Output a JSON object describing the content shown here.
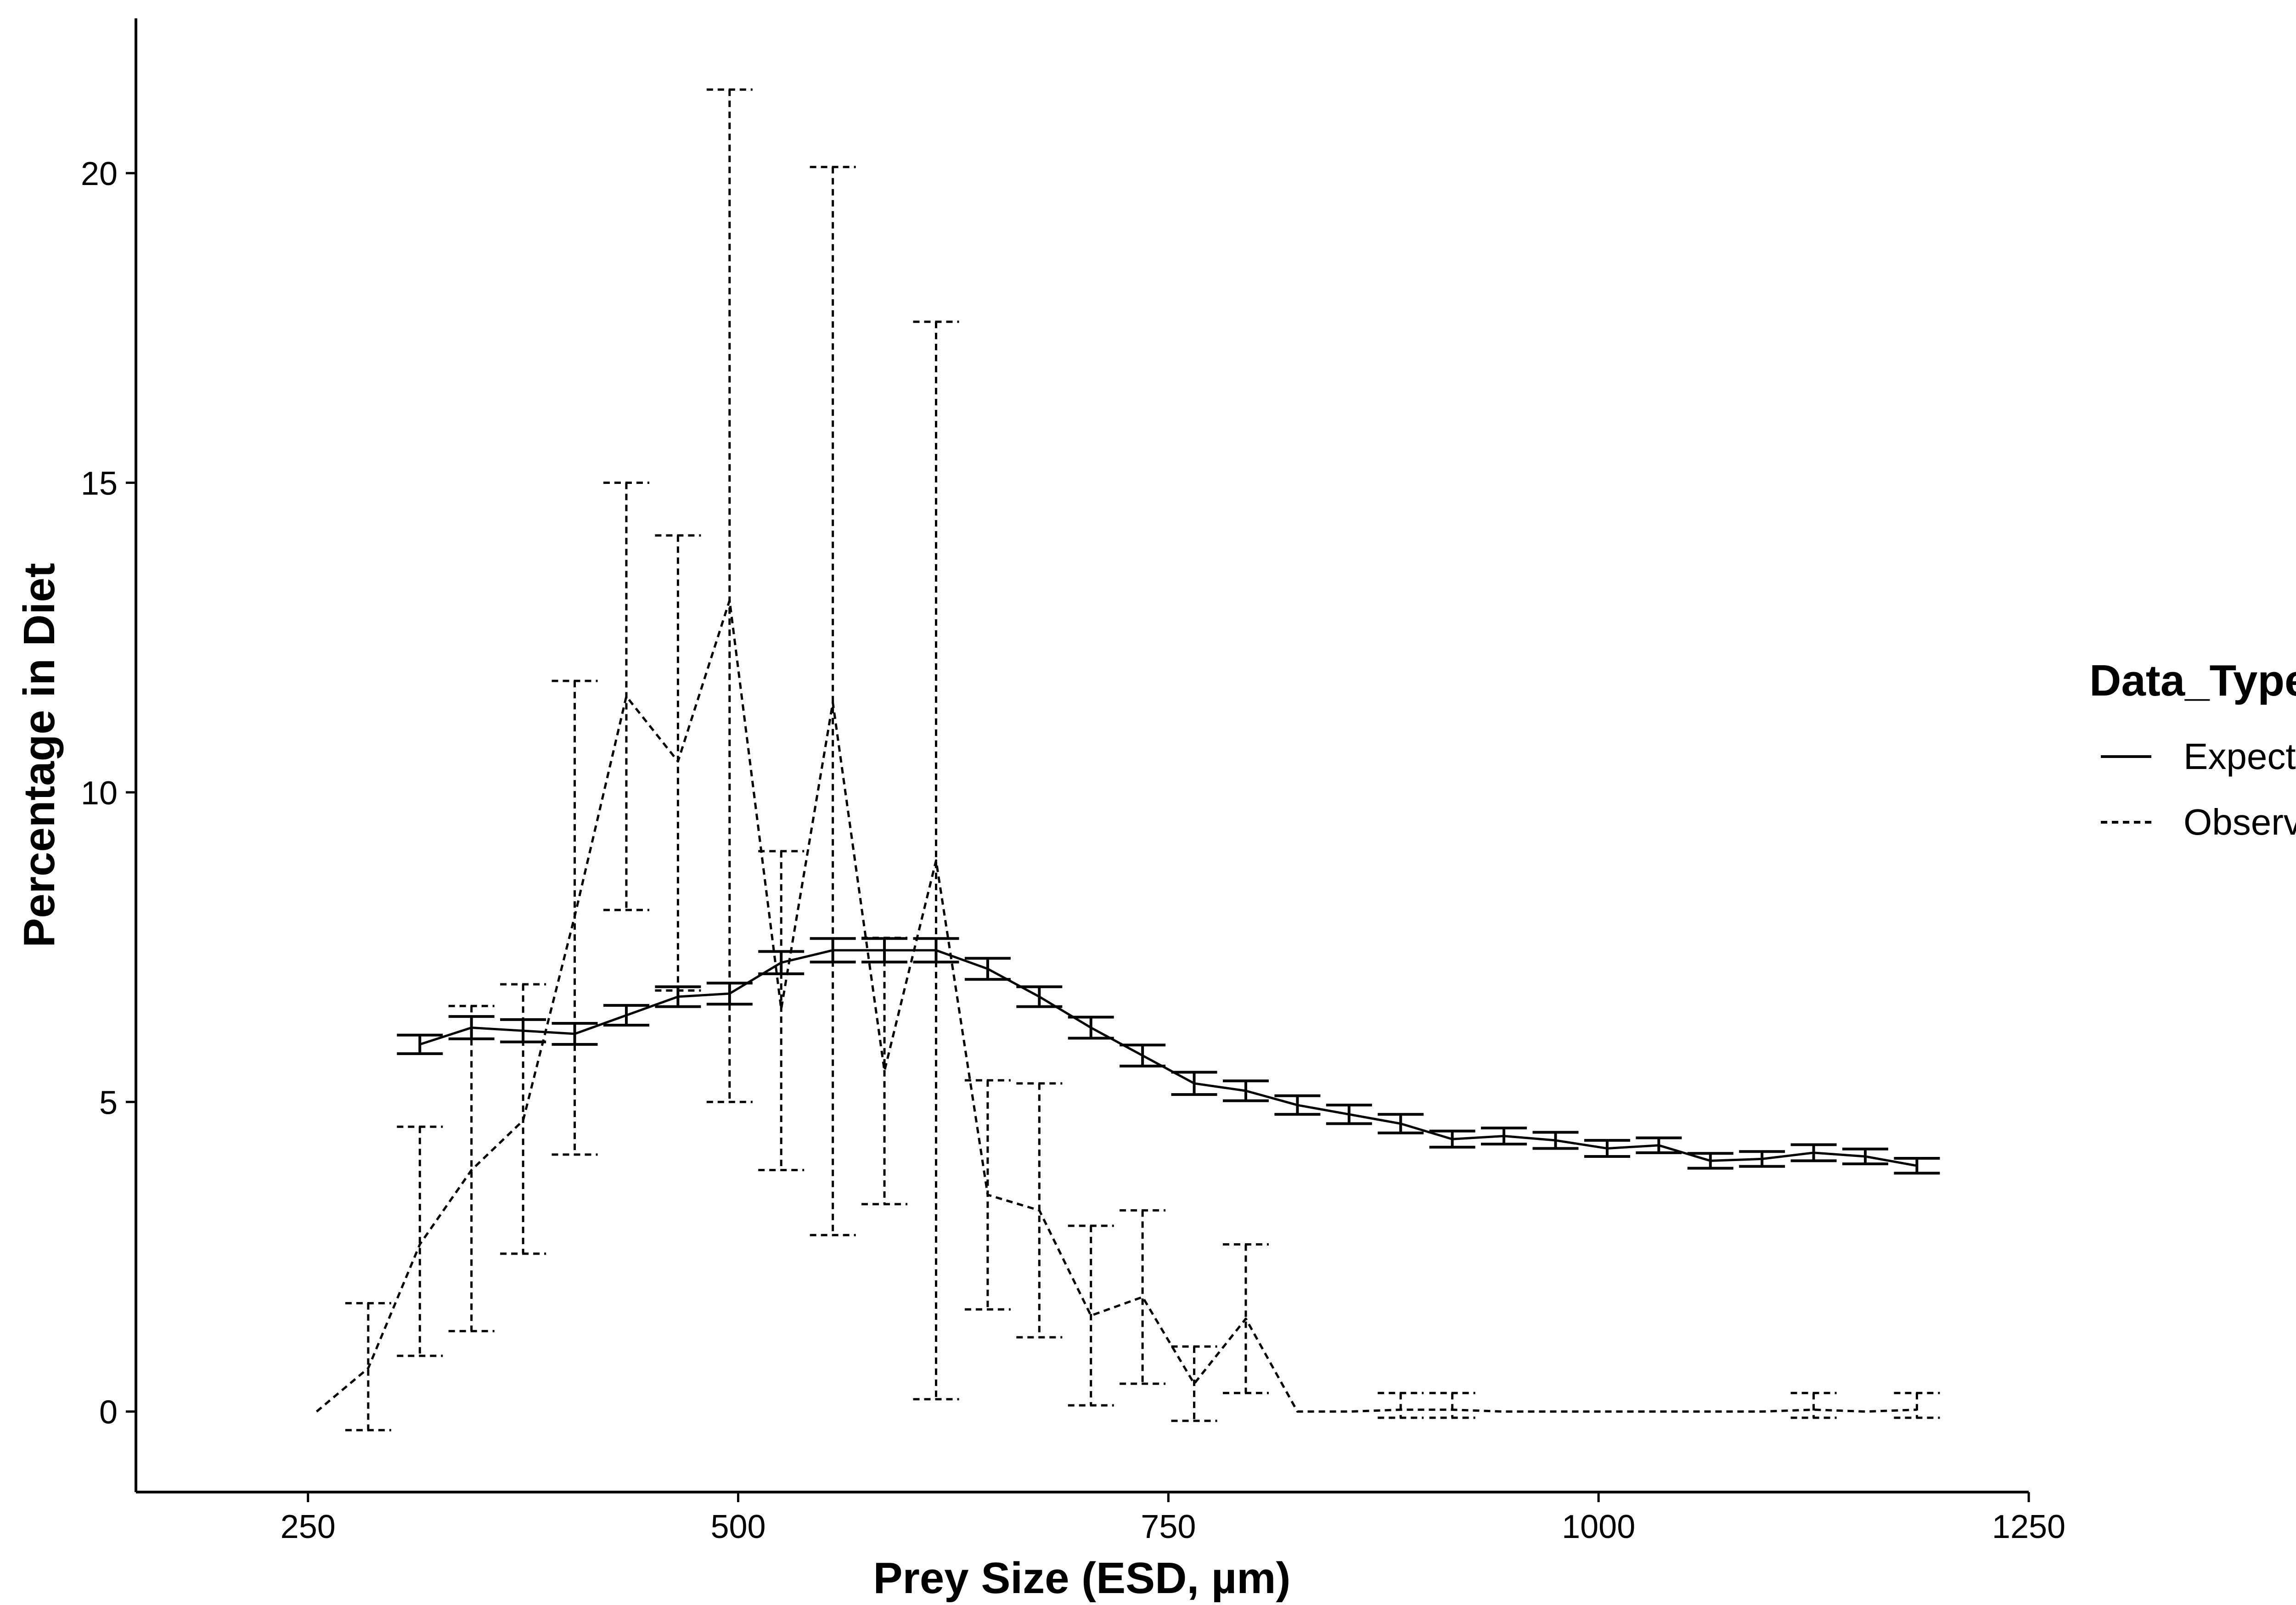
{
  "chart_data": {
    "type": "line",
    "title": "",
    "xlabel": "Prey Size (ESD, µm)",
    "ylabel": "Percentage in Diet",
    "xlim": [
      150,
      1250
    ],
    "ylim": [
      -1.3,
      22.5
    ],
    "xticks": [
      250,
      500,
      750,
      1000,
      1250
    ],
    "yticks": [
      0,
      5,
      10,
      15,
      20
    ],
    "grid": false,
    "legend": {
      "title": "Data_Type",
      "position": "right",
      "entries": [
        {
          "name": "Expected",
          "linetype": "solid"
        },
        {
          "name": "Observed",
          "linetype": "dashed"
        }
      ]
    },
    "series": [
      {
        "name": "Expected",
        "linetype": "solid",
        "x": [
          315,
          345,
          375,
          405,
          435,
          465,
          495,
          525,
          555,
          585,
          615,
          645,
          675,
          705,
          735,
          765,
          795,
          825,
          855,
          885,
          915,
          945,
          975,
          1005,
          1035,
          1065,
          1095,
          1125,
          1155,
          1185
        ],
        "y": [
          5.93,
          6.2,
          6.15,
          6.1,
          6.4,
          6.7,
          6.75,
          7.25,
          7.45,
          7.45,
          7.45,
          7.15,
          6.7,
          6.2,
          5.75,
          5.3,
          5.18,
          4.95,
          4.8,
          4.65,
          4.4,
          4.45,
          4.38,
          4.25,
          4.3,
          4.05,
          4.08,
          4.18,
          4.12,
          3.97
        ],
        "ymin": [
          5.78,
          6.02,
          5.97,
          5.93,
          6.24,
          6.54,
          6.58,
          7.07,
          7.26,
          7.26,
          7.26,
          6.98,
          6.54,
          6.03,
          5.58,
          5.12,
          5.02,
          4.8,
          4.65,
          4.5,
          4.27,
          4.32,
          4.25,
          4.12,
          4.18,
          3.93,
          3.96,
          4.05,
          4.0,
          3.85
        ],
        "ymax": [
          6.08,
          6.38,
          6.33,
          6.27,
          6.56,
          6.86,
          6.92,
          7.43,
          7.64,
          7.64,
          7.64,
          7.32,
          6.86,
          6.37,
          5.92,
          5.48,
          5.34,
          5.1,
          4.95,
          4.8,
          4.53,
          4.58,
          4.51,
          4.38,
          4.42,
          4.17,
          4.2,
          4.31,
          4.24,
          4.09
        ]
      },
      {
        "name": "Observed",
        "linetype": "dashed",
        "x": [
          255,
          285,
          315,
          345,
          375,
          405,
          435,
          465,
          495,
          525,
          555,
          585,
          615,
          645,
          675,
          705,
          735,
          765,
          795,
          825,
          855,
          885,
          915,
          945,
          975,
          1005,
          1035,
          1065,
          1095,
          1125,
          1155,
          1185
        ],
        "y": [
          0,
          0.7,
          2.7,
          3.9,
          4.7,
          8.0,
          11.55,
          10.5,
          13.1,
          6.5,
          11.45,
          5.5,
          8.9,
          3.5,
          3.25,
          1.55,
          1.85,
          0.45,
          1.5,
          0,
          0,
          0.03,
          0.03,
          0,
          0,
          0,
          0,
          0,
          0,
          0.03,
          0,
          0.03
        ],
        "ymin": [
          0,
          -0.3,
          0.9,
          1.3,
          2.55,
          4.15,
          8.1,
          6.8,
          5.0,
          3.9,
          2.85,
          3.35,
          0.2,
          1.65,
          1.2,
          0.1,
          0.45,
          -0.15,
          0.3,
          0,
          0,
          -0.1,
          -0.1,
          0,
          0,
          0,
          0,
          0,
          0,
          -0.1,
          0,
          -0.1
        ],
        "ymax": [
          0,
          1.75,
          4.6,
          6.55,
          6.9,
          11.8,
          15.0,
          14.15,
          21.35,
          9.05,
          20.1,
          7.65,
          17.6,
          5.35,
          5.3,
          3.0,
          3.25,
          1.05,
          2.7,
          0,
          0,
          0.3,
          0.3,
          0,
          0,
          0,
          0,
          0,
          0,
          0.3,
          0,
          0.3
        ]
      }
    ]
  }
}
